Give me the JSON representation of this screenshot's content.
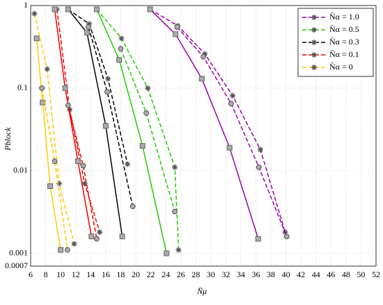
{
  "chart_data": {
    "type": "line",
    "x_label": "N̄μ",
    "y_label": "Pblock",
    "xlim": [
      6,
      52
    ],
    "xticks": [
      6,
      8,
      10,
      12,
      14,
      16,
      18,
      20,
      22,
      24,
      26,
      28,
      30,
      32,
      34,
      36,
      38,
      40,
      42,
      44,
      46,
      48,
      50,
      52
    ],
    "ylim": [
      0.0007,
      1
    ],
    "yticks": [
      0.0007,
      0.001,
      0.01,
      0.1,
      1
    ],
    "log_y": true,
    "grid": true,
    "legend": "upper right",
    "series": [
      {
        "name": "N̄α = 1.0",
        "color": "#9900aa",
        "dashed": true,
        "marker": "star",
        "x": [
          21.9,
          25.6,
          29.2,
          32.9,
          36.6,
          39.9
        ],
        "values": [
          0.9,
          0.57,
          0.26,
          0.081,
          0.018,
          0.0018
        ]
      },
      {
        "color": "#9900aa",
        "dashed": false,
        "marker": "square",
        "x": [
          21.9,
          25.3,
          28.8,
          32.5,
          36.3
        ],
        "values": [
          0.9,
          0.45,
          0.13,
          0.019,
          0.0015
        ]
      },
      {
        "color": "#9900aa",
        "dashed": true,
        "marker": "circle",
        "x": [
          25.5,
          29.0,
          32.7,
          36.4,
          40.1
        ],
        "values": [
          0.55,
          0.24,
          0.065,
          0.011,
          0.0016
        ]
      },
      {
        "name": "N̄α = 0.5",
        "color": "#22cc00",
        "dashed": true,
        "marker": "star",
        "x": [
          14.8,
          18.1,
          21.6,
          25.2,
          25.7
        ],
        "values": [
          0.9,
          0.4,
          0.1,
          0.011,
          0.0011
        ]
      },
      {
        "color": "#22cc00",
        "dashed": false,
        "marker": "square",
        "x": [
          14.8,
          17.8,
          20.9,
          24.1
        ],
        "values": [
          0.9,
          0.22,
          0.02,
          0.001
        ]
      },
      {
        "color": "#22cc00",
        "dashed": true,
        "marker": "circle",
        "x": [
          18.0,
          21.4,
          25.2
        ],
        "values": [
          0.3,
          0.05,
          0.0032
        ]
      },
      {
        "name": "N̄α = 0.3",
        "color": "#000000",
        "dashed": true,
        "marker": "star",
        "x": [
          11.0,
          13.8,
          16.3,
          18.9
        ],
        "values": [
          0.9,
          0.6,
          0.13,
          0.012
        ]
      },
      {
        "color": "#000000",
        "dashed": false,
        "marker": "square",
        "x": [
          11.0,
          13.5,
          16.0,
          18.2
        ],
        "values": [
          0.9,
          0.47,
          0.035,
          0.0016
        ]
      },
      {
        "color": "#000000",
        "dashed": true,
        "marker": "circle",
        "x": [
          13.7,
          16.2,
          19.6
        ],
        "values": [
          0.55,
          0.09,
          0.0037
        ]
      },
      {
        "name": "N̄α = 0.1",
        "color": "#ee0000",
        "dashed": true,
        "marker": "star",
        "x": [
          9.5,
          11.2,
          13.2,
          15.2
        ],
        "values": [
          0.9,
          0.055,
          0.007,
          0.0018
        ]
      },
      {
        "color": "#ee0000",
        "dashed": false,
        "marker": "square",
        "x": [
          9.2,
          10.6,
          12.3,
          14.1
        ],
        "values": [
          0.9,
          0.1,
          0.013,
          0.0016
        ]
      },
      {
        "color": "#ee0000",
        "dashed": true,
        "marker": "circle",
        "x": [
          11.0,
          13.0,
          14.8
        ],
        "values": [
          0.062,
          0.0115,
          0.0015
        ]
      },
      {
        "name": "N̄α = 0",
        "color": "#ffcc00",
        "dashed": true,
        "marker": "star",
        "x": [
          6.5,
          8.2,
          9.8,
          11.8
        ],
        "values": [
          0.8,
          0.17,
          0.007,
          0.0013
        ]
      },
      {
        "color": "#ffcc00",
        "dashed": false,
        "marker": "square",
        "x": [
          6.8,
          7.6,
          8.6,
          10.0
        ],
        "values": [
          0.4,
          0.067,
          0.0065,
          0.0011
        ]
      },
      {
        "color": "#ffcc00",
        "dashed": true,
        "marker": "circle",
        "x": [
          7.5,
          9.2,
          10.9
        ],
        "values": [
          0.1,
          0.013,
          0.0011
        ]
      }
    ]
  }
}
